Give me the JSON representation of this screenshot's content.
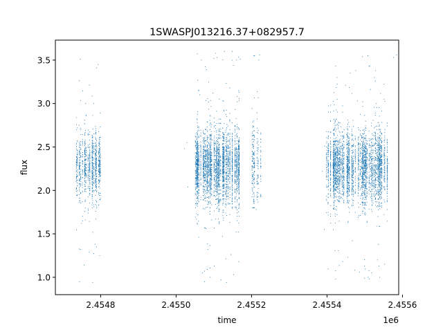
{
  "chart_data": {
    "type": "scatter",
    "title": "1SWASPJ013216.37+082957.7",
    "xlabel": "time",
    "ylabel": "flux",
    "x_offset_label": "1e6",
    "xlim": [
      2454680,
      2455590
    ],
    "ylim": [
      0.8,
      3.73
    ],
    "x_ticks": [
      {
        "value": 2454800,
        "label": "2.4548"
      },
      {
        "value": 2455000,
        "label": "2.4550"
      },
      {
        "value": 2455200,
        "label": "2.4552"
      },
      {
        "value": 2455400,
        "label": "2.4554"
      },
      {
        "value": 2455600,
        "label": "2.4556"
      }
    ],
    "y_ticks": [
      {
        "value": 1.0,
        "label": "1.0"
      },
      {
        "value": 1.5,
        "label": "1.5"
      },
      {
        "value": 2.0,
        "label": "2.0"
      },
      {
        "value": 2.5,
        "label": "2.5"
      },
      {
        "value": 3.0,
        "label": "3.0"
      },
      {
        "value": 3.5,
        "label": "3.5"
      }
    ],
    "grid": false,
    "legend": "none",
    "marker_color": "#1f77b4",
    "series": [
      {
        "observing_seasons": [
          {
            "x_range": [
              2454735,
              2454800
            ],
            "y_median": 2.27,
            "y_spread": 0.18,
            "y_range": [
              0.95,
              3.45
            ]
          },
          {
            "x_range": [
              2455050,
              2455170
            ],
            "y_median": 2.27,
            "y_spread": 0.2,
            "y_range": [
              0.95,
              3.6
            ]
          },
          {
            "x_range": [
              2455200,
              2455225
            ],
            "y_median": 2.3,
            "y_spread": 0.25,
            "y_range": [
              1.8,
              3.55
            ]
          },
          {
            "x_range": [
              2455390,
              2455560
            ],
            "y_median": 2.26,
            "y_spread": 0.2,
            "y_range": [
              0.98,
              3.55
            ]
          }
        ],
        "points": [
          [
            2454746.2,
            3.51
          ],
          [
            2454788.9,
            3.41
          ],
          [
            2454793.2,
            3.45
          ],
          [
            2454778.8,
            0.94
          ],
          [
            2454760.1,
            3.0
          ],
          [
            2454781.4,
            3.0
          ],
          [
            2454742.7,
            2.75
          ],
          [
            2454756.4,
            1.14
          ],
          [
            2454789.2,
            1.35
          ],
          [
            2454797.5,
            1.25
          ],
          [
            2454784.9,
            1.38
          ],
          [
            2454749.7,
            1.62
          ],
          [
            2455066.9,
            3.5
          ],
          [
            2455080.5,
            3.39
          ],
          [
            2455100.3,
            3.52
          ],
          [
            2455108.7,
            3.53
          ],
          [
            2455128.2,
            3.6
          ],
          [
            2455151.8,
            3.44
          ],
          [
            2455160.4,
            3.5
          ],
          [
            2455170.1,
            3.51
          ],
          [
            2455062.4,
            3.1
          ],
          [
            2455097.6,
            3.12
          ],
          [
            2455142.5,
            3.18
          ],
          [
            2455069.8,
            1.05
          ],
          [
            2455075.2,
            1.07
          ],
          [
            2455090.5,
            1.0
          ],
          [
            2455101.3,
            1.13
          ],
          [
            2455118.9,
            0.97
          ],
          [
            2455133.6,
            0.94
          ],
          [
            2455152.7,
            1.03
          ],
          [
            2455166.2,
            1.18
          ],
          [
            2455084.1,
            1.32
          ],
          [
            2455122.8,
            1.47
          ],
          [
            2455145.2,
            1.26
          ],
          [
            2455164.9,
            1.52
          ],
          [
            2455221.2,
            3.56
          ],
          [
            2455219.3,
            3.5
          ],
          [
            2455206.5,
            1.85
          ],
          [
            2455212.4,
            1.78
          ],
          [
            2455022.3,
            2.48
          ],
          [
            2455028.6,
            2.55
          ],
          [
            2455031.4,
            2.04
          ],
          [
            2455426.3,
            3.3
          ],
          [
            2455449.1,
            3.21
          ],
          [
            2455461.7,
            3.35
          ],
          [
            2455476.2,
            3.38
          ],
          [
            2455493.5,
            3.54
          ],
          [
            2455508.4,
            3.55
          ],
          [
            2455512.9,
            3.43
          ],
          [
            2455525.6,
            3.3
          ],
          [
            2455584.3,
            3.56
          ],
          [
            2455576.1,
            3.53
          ],
          [
            2455530.7,
            3.0
          ],
          [
            2455480.9,
            3.03
          ],
          [
            2455441.3,
            1.18
          ],
          [
            2455455.6,
            1.23
          ],
          [
            2455473.4,
            1.08
          ],
          [
            2455486.2,
            1.06
          ],
          [
            2455499.5,
            0.99
          ],
          [
            2455509.1,
            1.0
          ],
          [
            2455518.4,
            1.05
          ],
          [
            2455533.8,
            1.2
          ],
          [
            2455552.6,
            1.15
          ],
          [
            2455467.2,
            1.42
          ],
          [
            2455536.5,
            1.38
          ],
          [
            2455392.5,
            1.55
          ],
          [
            2455387.6,
            2.22
          ],
          [
            2455393.9,
            2.51
          ],
          [
            2455558.8,
            2.05
          ],
          [
            2455562.7,
            2.31
          ]
        ]
      }
    ]
  }
}
